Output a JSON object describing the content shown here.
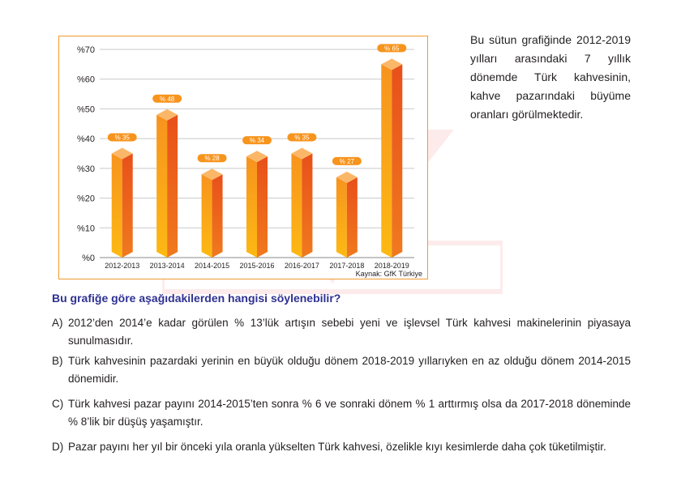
{
  "side_text": "Bu sütun grafiğinde 2012-2019 yılları arasındaki 7 yıllık dönemde Türk kahvesinin, kahve pazarındaki büyüme oranları görülmektedir.",
  "question": "Bu grafiğe göre aşağıdakilerden hangisi söylenebilir?",
  "options": [
    {
      "letter": "A)",
      "text": "2012’den 2014’e kadar görülen % 13’lük artışın sebebi yeni ve işlevsel Türk kahvesi makinelerinin piyasaya sunulmasıdır."
    },
    {
      "letter": "B)",
      "text": "Türk kahvesinin pazardaki yerinin en büyük olduğu dönem 2018-2019 yıllarıyken en az olduğu dönem 2014-2015 dönemidir."
    },
    {
      "letter": "C)",
      "text": "Türk kahvesi pazar payını 2014-2015’ten sonra % 6 ve sonraki dönem % 1 arttırmış olsa da 2017-2018 döneminde % 8’lik bir düşüş yaşamıştır."
    },
    {
      "letter": "D)",
      "text": "Pazar payını her yıl bir önceki yıla oranla yükselten Türk kahvesi, özelikle kıyı kesimlerde daha çok tüketilmiştir."
    }
  ],
  "chart_data": {
    "type": "bar",
    "categories": [
      "2012-2013",
      "2013-2014",
      "2014-2015",
      "2015-2016",
      "2016-2017",
      "2017-2018",
      "2018-2019"
    ],
    "values": [
      35,
      48,
      28,
      34,
      35,
      27,
      65
    ],
    "value_labels": [
      "% 35",
      "% 48",
      "% 28",
      "% 34",
      "% 35",
      "% 27",
      "% 65"
    ],
    "y_ticks": [
      "%0",
      "%10",
      "%20",
      "%30",
      "%40",
      "%50",
      "%60",
      "%70"
    ],
    "ylim": [
      0,
      70
    ],
    "grid": true,
    "source": "Kaynak: GfK Türkiye",
    "colors": {
      "bar_front": "#f7941d",
      "bar_side": "#e8571b",
      "bar_top": "#fbb768",
      "label_bg": "#f7941d",
      "border": "#f29a2e",
      "grid": "#c9c9c9"
    }
  }
}
